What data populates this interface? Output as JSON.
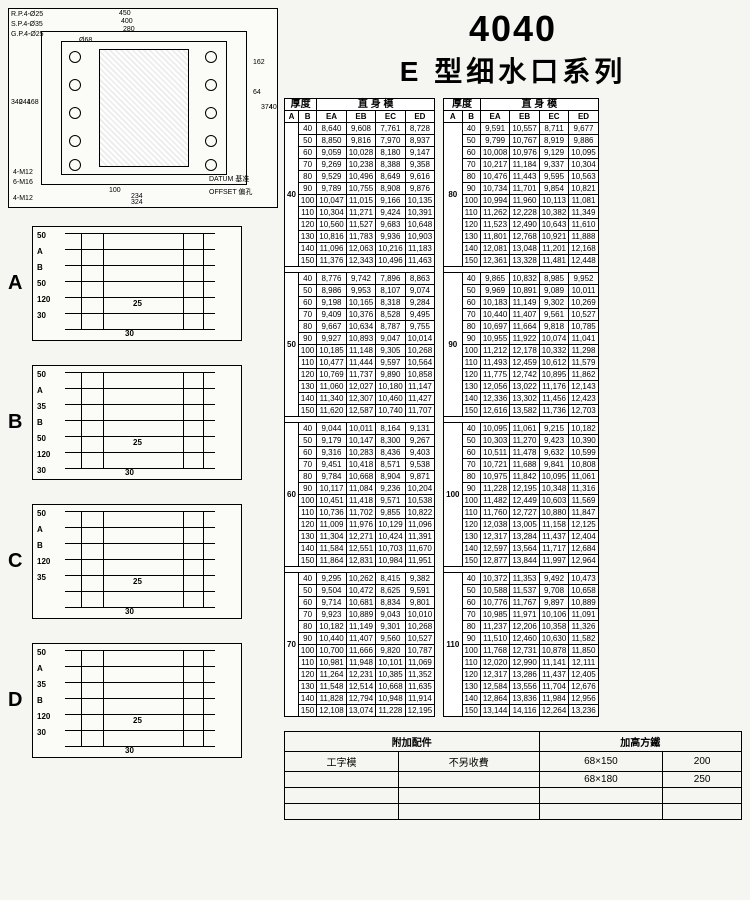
{
  "title": {
    "model": "4040",
    "series": "E 型细水口系列"
  },
  "tech_drawing": {
    "dims_top": [
      "450",
      "400",
      "280"
    ],
    "dims_left": [
      "340",
      "244",
      "168",
      "92",
      "60"
    ],
    "dims_right": [
      "162",
      "64",
      "92",
      "180",
      "374",
      "400"
    ],
    "dims_bottom": [
      "100",
      "234",
      "324",
      "330"
    ],
    "labels": [
      "R.P.4-Ø25",
      "S.P.4-Ø35",
      "G.P.4-Ø25",
      "4-M12",
      "6-M16",
      "4-M12",
      "DATUM 基准",
      "OFFSET 偏孔"
    ],
    "hole_centers": "Ø68"
  },
  "section_labels": [
    "A",
    "B",
    "C",
    "D"
  ],
  "section_dims": {
    "left_stack_A": [
      "50",
      "A",
      "B",
      "50",
      "120",
      "30"
    ],
    "left_stack_B": [
      "50",
      "A",
      "35",
      "B",
      "50",
      "120",
      "30"
    ],
    "left_stack_C": [
      "50",
      "A",
      "B",
      "120",
      "35"
    ],
    "left_stack_D": [
      "50",
      "A",
      "35",
      "B",
      "120",
      "30"
    ],
    "inner": [
      "25",
      "30"
    ]
  },
  "table_headers": {
    "group": "厚度",
    "sub": "直 身 模",
    "cols": [
      "A",
      "B",
      "EA",
      "EB",
      "EC",
      "ED"
    ]
  },
  "b_values": [
    40,
    50,
    60,
    70,
    80,
    90,
    100,
    110,
    120,
    130,
    140,
    150
  ],
  "left_table": [
    {
      "A": 40,
      "rows": [
        [
          8.64,
          9.608,
          7.761,
          8.728
        ],
        [
          8.85,
          9.816,
          7.97,
          8.937
        ],
        [
          9.059,
          10.028,
          8.18,
          9.147
        ],
        [
          9.269,
          10.238,
          8.388,
          9.358
        ],
        [
          9.529,
          10.496,
          8.649,
          9.616
        ],
        [
          9.789,
          10.755,
          8.908,
          9.876
        ],
        [
          10.047,
          11.015,
          9.166,
          10.135
        ],
        [
          10.304,
          11.271,
          9.424,
          10.391
        ],
        [
          10.56,
          11.527,
          9.683,
          10.648
        ],
        [
          10.816,
          11.783,
          9.936,
          10.903
        ],
        [
          11.096,
          12.063,
          10.216,
          11.183
        ],
        [
          11.376,
          12.343,
          10.496,
          11.463
        ]
      ]
    },
    {
      "A": 50,
      "rows": [
        [
          8.776,
          9.742,
          7.896,
          8.863
        ],
        [
          8.986,
          9.953,
          8.107,
          9.074
        ],
        [
          9.198,
          10.165,
          8.318,
          9.284
        ],
        [
          9.409,
          10.376,
          8.528,
          9.495
        ],
        [
          9.667,
          10.634,
          8.787,
          9.755
        ],
        [
          9.927,
          10.893,
          9.047,
          10.014
        ],
        [
          10.185,
          11.148,
          9.305,
          10.268
        ],
        [
          10.477,
          11.444,
          9.597,
          10.564
        ],
        [
          10.769,
          11.737,
          9.89,
          10.858
        ],
        [
          11.06,
          12.027,
          10.18,
          11.147
        ],
        [
          11.34,
          12.307,
          10.46,
          11.427
        ],
        [
          11.62,
          12.587,
          10.74,
          11.707
        ]
      ]
    },
    {
      "A": 60,
      "rows": [
        [
          9.044,
          10.011,
          8.164,
          9.131
        ],
        [
          9.179,
          10.147,
          8.3,
          9.267
        ],
        [
          9.316,
          10.283,
          8.436,
          9.403
        ],
        [
          9.451,
          10.418,
          8.571,
          9.538
        ],
        [
          9.784,
          10.668,
          8.904,
          9.871
        ],
        [
          10.117,
          11.084,
          9.236,
          10.204
        ],
        [
          10.451,
          11.418,
          9.571,
          10.538
        ],
        [
          10.736,
          11.702,
          9.855,
          10.822
        ],
        [
          11.009,
          11.976,
          10.129,
          11.096
        ],
        [
          11.304,
          12.271,
          10.424,
          11.391
        ],
        [
          11.584,
          12.551,
          10.703,
          11.67
        ],
        [
          11.864,
          12.831,
          10.984,
          11.951
        ]
      ]
    },
    {
      "A": 70,
      "rows": [
        [
          9.295,
          10.262,
          8.415,
          9.382
        ],
        [
          9.504,
          10.472,
          8.625,
          9.591
        ],
        [
          9.714,
          10.681,
          8.834,
          9.801
        ],
        [
          9.923,
          10.889,
          9.043,
          10.01
        ],
        [
          10.182,
          11.149,
          9.301,
          10.268
        ],
        [
          10.44,
          11.407,
          9.56,
          10.527
        ],
        [
          10.7,
          11.666,
          9.82,
          10.787
        ],
        [
          10.981,
          11.948,
          10.101,
          11.069
        ],
        [
          11.264,
          12.231,
          10.385,
          11.352
        ],
        [
          11.548,
          12.514,
          10.668,
          11.635
        ],
        [
          11.828,
          12.794,
          10.948,
          11.914
        ],
        [
          12.108,
          13.074,
          11.228,
          12.195
        ]
      ]
    }
  ],
  "right_table": [
    {
      "A": 80,
      "rows": [
        [
          9.591,
          10.557,
          8.711,
          9.677
        ],
        [
          9.799,
          10.767,
          8.919,
          9.886
        ],
        [
          10.008,
          10.976,
          9.129,
          10.095
        ],
        [
          10.217,
          11.184,
          9.337,
          10.304
        ],
        [
          10.476,
          11.443,
          9.595,
          10.563
        ],
        [
          10.734,
          11.701,
          9.854,
          10.821
        ],
        [
          10.994,
          11.96,
          10.113,
          11.081
        ],
        [
          11.262,
          12.228,
          10.382,
          11.349
        ],
        [
          11.523,
          12.49,
          10.643,
          11.61
        ],
        [
          11.801,
          12.768,
          10.921,
          11.888
        ],
        [
          12.081,
          13.048,
          11.201,
          12.168
        ],
        [
          12.361,
          13.328,
          11.481,
          12.448
        ]
      ]
    },
    {
      "A": 90,
      "rows": [
        [
          9.865,
          10.832,
          8.985,
          9.952
        ],
        [
          9.969,
          10.891,
          9.089,
          10.011
        ],
        [
          10.183,
          11.149,
          9.302,
          10.269
        ],
        [
          10.44,
          11.407,
          9.561,
          10.527
        ],
        [
          10.697,
          11.664,
          9.818,
          10.785
        ],
        [
          10.955,
          11.922,
          10.074,
          11.041
        ],
        [
          11.212,
          12.178,
          10.332,
          11.298
        ],
        [
          11.493,
          12.459,
          10.612,
          11.579
        ],
        [
          11.775,
          12.742,
          10.895,
          11.862
        ],
        [
          12.056,
          13.022,
          11.176,
          12.143
        ],
        [
          12.336,
          13.302,
          11.456,
          12.423
        ],
        [
          12.616,
          13.582,
          11.736,
          12.703
        ]
      ]
    },
    {
      "A": 100,
      "rows": [
        [
          10.095,
          11.061,
          9.215,
          10.182
        ],
        [
          10.303,
          11.27,
          9.423,
          10.39
        ],
        [
          10.511,
          11.478,
          9.632,
          10.599
        ],
        [
          10.721,
          11.688,
          9.841,
          10.808
        ],
        [
          10.975,
          11.842,
          10.095,
          11.061
        ],
        [
          11.228,
          12.195,
          10.348,
          11.316
        ],
        [
          11.482,
          12.449,
          10.603,
          11.569
        ],
        [
          11.76,
          12.727,
          10.88,
          11.847
        ],
        [
          12.038,
          13.005,
          11.158,
          12.125
        ],
        [
          12.317,
          13.284,
          11.437,
          12.404
        ],
        [
          12.597,
          13.564,
          11.717,
          12.684
        ],
        [
          12.877,
          13.844,
          11.997,
          12.964
        ]
      ]
    },
    {
      "A": 110,
      "rows": [
        [
          10.372,
          11.353,
          9.492,
          10.473
        ],
        [
          10.588,
          11.537,
          9.708,
          10.658
        ],
        [
          10.776,
          11.767,
          9.897,
          10.889
        ],
        [
          10.985,
          11.971,
          10.106,
          11.091
        ],
        [
          11.237,
          12.206,
          10.358,
          11.326
        ],
        [
          11.51,
          12.46,
          10.63,
          11.582
        ],
        [
          11.768,
          12.731,
          10.878,
          11.85
        ],
        [
          12.02,
          12.99,
          11.141,
          12.111
        ],
        [
          12.317,
          13.286,
          11.437,
          12.405
        ],
        [
          12.584,
          13.556,
          11.704,
          12.676
        ],
        [
          12.864,
          13.836,
          11.984,
          12.956
        ],
        [
          13.144,
          14.116,
          12.264,
          13.236
        ]
      ]
    }
  ],
  "accessory": {
    "title_left": "附加配件",
    "title_right": "加高方鐵",
    "col_labels": [
      "工字模",
      "不另收費"
    ],
    "rows": [
      [
        "68×150",
        "200"
      ],
      [
        "68×180",
        "250"
      ]
    ]
  }
}
